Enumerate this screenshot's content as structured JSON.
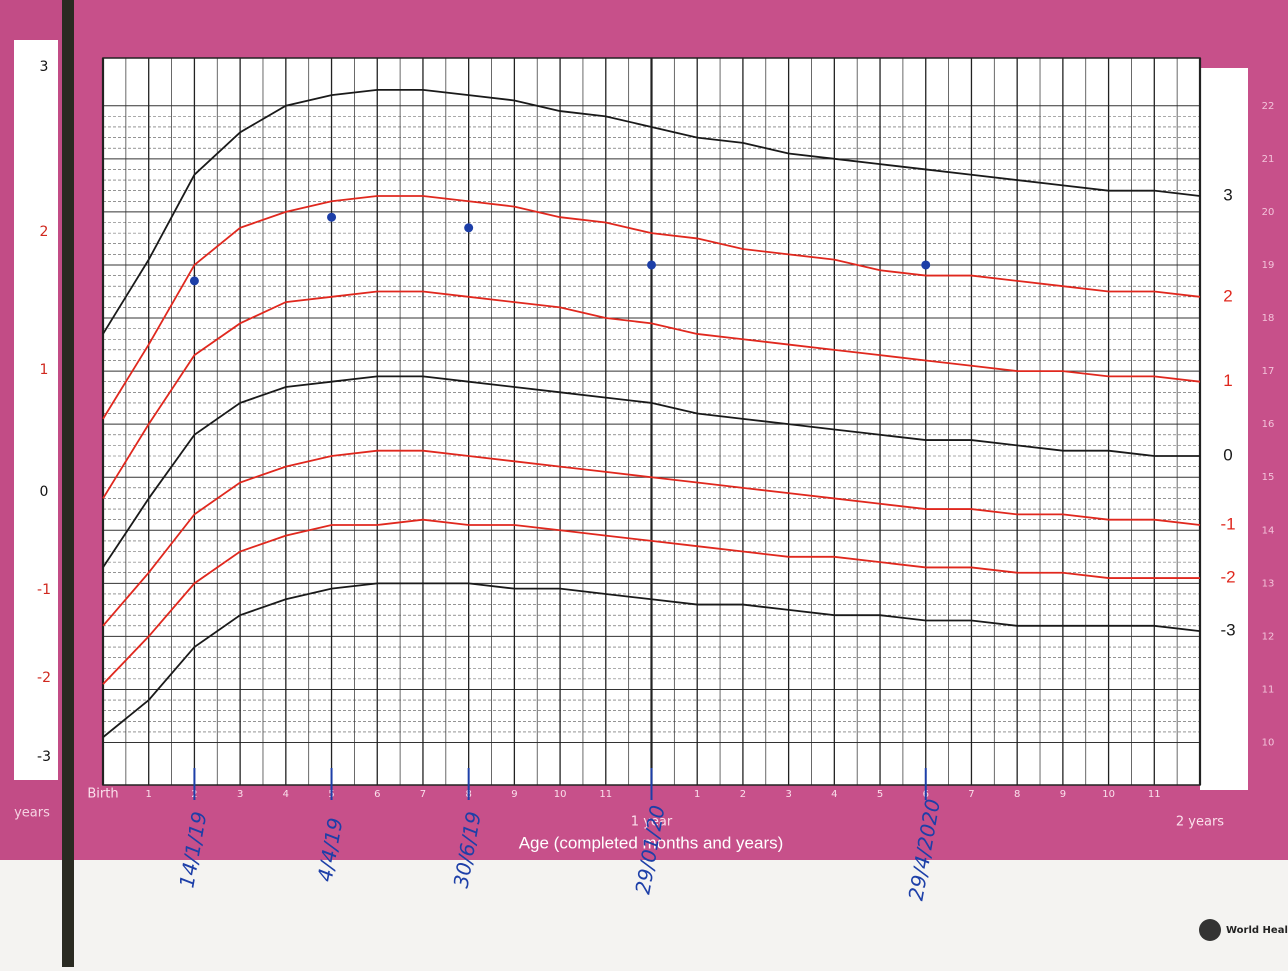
{
  "chart_data": {
    "type": "line",
    "x_label": "Age (completed months and years)",
    "x": [
      0,
      1,
      2,
      3,
      4,
      5,
      6,
      7,
      8,
      9,
      10,
      11,
      12,
      13,
      14,
      15,
      16,
      17,
      18,
      19,
      20,
      21,
      22,
      23,
      24
    ],
    "xlim": [
      0,
      24
    ],
    "xticks": [
      {
        "value": 0,
        "label": "Birth"
      },
      1,
      2,
      3,
      4,
      5,
      6,
      7,
      8,
      9,
      10,
      11,
      {
        "value": 12,
        "label": "1 year"
      },
      {
        "value": 13,
        "label": "1"
      },
      {
        "value": 14,
        "label": "2"
      },
      {
        "value": 15,
        "label": "3"
      },
      {
        "value": 16,
        "label": "4"
      },
      {
        "value": 17,
        "label": "5"
      },
      {
        "value": 18,
        "label": "6"
      },
      {
        "value": 19,
        "label": "7"
      },
      {
        "value": 20,
        "label": "8"
      },
      {
        "value": 21,
        "label": "9"
      },
      {
        "value": 22,
        "label": "10"
      },
      {
        "value": 23,
        "label": "11"
      },
      {
        "value": 24,
        "label": "2 years"
      }
    ],
    "ylim": [
      9.2,
      22.9
    ],
    "yticks": [
      10,
      11,
      12,
      13,
      14,
      15,
      16,
      17,
      18,
      19,
      20,
      21,
      22
    ],
    "grid": true,
    "series": [
      {
        "name": "3",
        "color": "#1a1a1a",
        "values": [
          17.7,
          19.1,
          20.7,
          21.5,
          22.0,
          22.2,
          22.3,
          22.3,
          22.2,
          22.1,
          21.9,
          21.8,
          21.6,
          21.4,
          21.3,
          21.1,
          21.0,
          20.9,
          20.8,
          20.7,
          20.6,
          20.5,
          20.4,
          20.4,
          20.3
        ]
      },
      {
        "name": "2",
        "color": "#e0281e",
        "values": [
          16.1,
          17.5,
          19.0,
          19.7,
          20.0,
          20.2,
          20.3,
          20.3,
          20.2,
          20.1,
          19.9,
          19.8,
          19.6,
          19.5,
          19.3,
          19.2,
          19.1,
          18.9,
          18.8,
          18.8,
          18.7,
          18.6,
          18.5,
          18.5,
          18.4
        ]
      },
      {
        "name": "1",
        "color": "#e0281e",
        "values": [
          14.6,
          16.0,
          17.3,
          17.9,
          18.3,
          18.4,
          18.5,
          18.5,
          18.4,
          18.3,
          18.2,
          18.0,
          17.9,
          17.7,
          17.6,
          17.5,
          17.4,
          17.3,
          17.2,
          17.1,
          17.0,
          17.0,
          16.9,
          16.9,
          16.8
        ]
      },
      {
        "name": "0",
        "color": "#1a1a1a",
        "values": [
          13.3,
          14.6,
          15.8,
          16.4,
          16.7,
          16.8,
          16.9,
          16.9,
          16.8,
          16.7,
          16.6,
          16.5,
          16.4,
          16.2,
          16.1,
          16.0,
          15.9,
          15.8,
          15.7,
          15.7,
          15.6,
          15.5,
          15.5,
          15.4,
          15.4
        ]
      },
      {
        "name": "-1",
        "color": "#e0281e",
        "values": [
          12.2,
          13.2,
          14.3,
          14.9,
          15.2,
          15.4,
          15.5,
          15.5,
          15.4,
          15.3,
          15.2,
          15.1,
          15.0,
          14.9,
          14.8,
          14.7,
          14.6,
          14.5,
          14.4,
          14.4,
          14.3,
          14.3,
          14.2,
          14.2,
          14.1
        ]
      },
      {
        "name": "-2",
        "color": "#e0281e",
        "values": [
          11.1,
          12.0,
          13.0,
          13.6,
          13.9,
          14.1,
          14.1,
          14.2,
          14.1,
          14.1,
          14.0,
          13.9,
          13.8,
          13.7,
          13.6,
          13.5,
          13.5,
          13.4,
          13.3,
          13.3,
          13.2,
          13.2,
          13.1,
          13.1,
          13.1
        ]
      },
      {
        "name": "-3",
        "color": "#1a1a1a",
        "values": [
          10.1,
          10.8,
          11.8,
          12.4,
          12.7,
          12.9,
          13.0,
          13.0,
          13.0,
          12.9,
          12.9,
          12.8,
          12.7,
          12.6,
          12.6,
          12.5,
          12.4,
          12.4,
          12.3,
          12.3,
          12.2,
          12.2,
          12.2,
          12.2,
          12.1
        ]
      }
    ],
    "measurements": {
      "color": "#1d3fa8",
      "x": [
        2,
        5,
        8,
        12,
        18
      ],
      "y": [
        18.7,
        19.9,
        19.7,
        19.0,
        19.0
      ],
      "labels": [
        "14/1/19",
        "4/4/19",
        "30/6/19",
        "29/01/20",
        "29/4/2020"
      ]
    }
  },
  "left_page": {
    "z_labels": [
      "3",
      "2",
      "1",
      "0",
      "-1",
      "-2",
      "-3"
    ],
    "axis_label": "years"
  },
  "footer": {
    "organization": "World Health Organization"
  }
}
